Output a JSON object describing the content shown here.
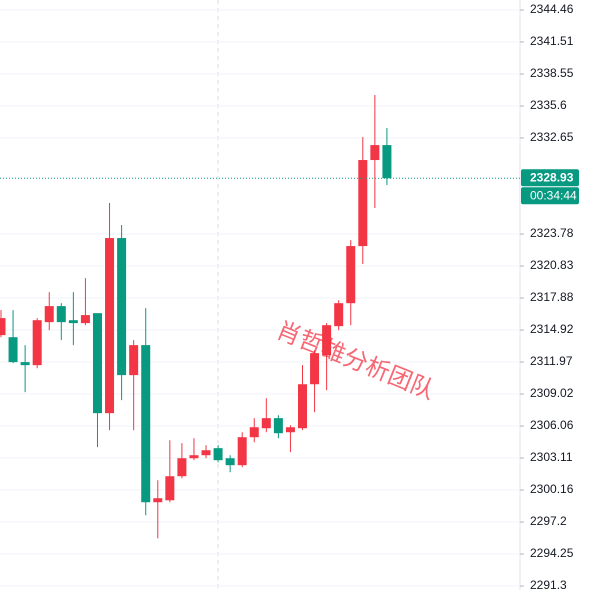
{
  "chart_data": {
    "type": "candlestick",
    "up_color": "#f23645",
    "down_color": "#089981",
    "ylim": [
      2290.93,
      2345.38
    ],
    "yticks": [
      2344.46,
      2341.51,
      2338.55,
      2335.6,
      2332.65,
      2323.78,
      2320.83,
      2317.88,
      2314.92,
      2311.97,
      2309.02,
      2306.06,
      2303.11,
      2300.16,
      2297.2,
      2294.25,
      2291.3
    ],
    "grid": true,
    "open": [
      2314.45,
      2314.26,
      2311.96,
      2311.68,
      2315.65,
      2317.13,
      2315.83,
      2315.56,
      2316.48,
      2307.25,
      2323.41,
      2310.76,
      2313.53,
      2299.03,
      2299.21,
      2301.43,
      2303.09,
      2303.37,
      2304.02,
      2303.09,
      2302.45,
      2305.03,
      2305.86,
      2306.79,
      2305.49,
      2305.86,
      2309.92,
      2312.6,
      2315.28,
      2317.4,
      2322.67,
      2330.61,
      2331.99
    ],
    "high": [
      2316.76,
      2316.76,
      2313.53,
      2316.02,
      2318.42,
      2317.4,
      2318.42,
      2319.71,
      2316.48,
      2326.64,
      2324.61,
      2313.99,
      2316.94,
      2301.06,
      2304.75,
      2304.48,
      2304.94,
      2304.29,
      2304.29,
      2303.37,
      2305.49,
      2306.79,
      2308.63,
      2307.06,
      2306.14,
      2311.68,
      2313.06,
      2315.56,
      2317.68,
      2323.22,
      2332.73,
      2336.61,
      2333.56
    ],
    "low": [
      2314.26,
      2311.86,
      2309.19,
      2311.4,
      2314.91,
      2313.99,
      2313.53,
      2315.37,
      2304.11,
      2305.68,
      2308.45,
      2305.68,
      2297.83,
      2295.7,
      2299.03,
      2301.24,
      2302.91,
      2303.09,
      2302.72,
      2301.8,
      2302.26,
      2304.57,
      2305.49,
      2304.94,
      2303.65,
      2305.68,
      2307.34,
      2309.37,
      2314.91,
      2315.37,
      2321.01,
      2326.18,
      2328.3
    ],
    "close": [
      2316.02,
      2311.96,
      2311.68,
      2315.83,
      2317.13,
      2315.65,
      2315.56,
      2316.3,
      2307.25,
      2323.41,
      2310.76,
      2313.53,
      2299.03,
      2299.4,
      2301.43,
      2303.09,
      2303.37,
      2303.83,
      2302.91,
      2302.45,
      2305.03,
      2305.95,
      2306.79,
      2305.4,
      2305.95,
      2309.92,
      2312.79,
      2315.37,
      2317.4,
      2322.67,
      2330.61,
      2331.99,
      2328.93
    ],
    "countdown": "00:34:44",
    "watermark": "肖哲雄分析团队"
  }
}
